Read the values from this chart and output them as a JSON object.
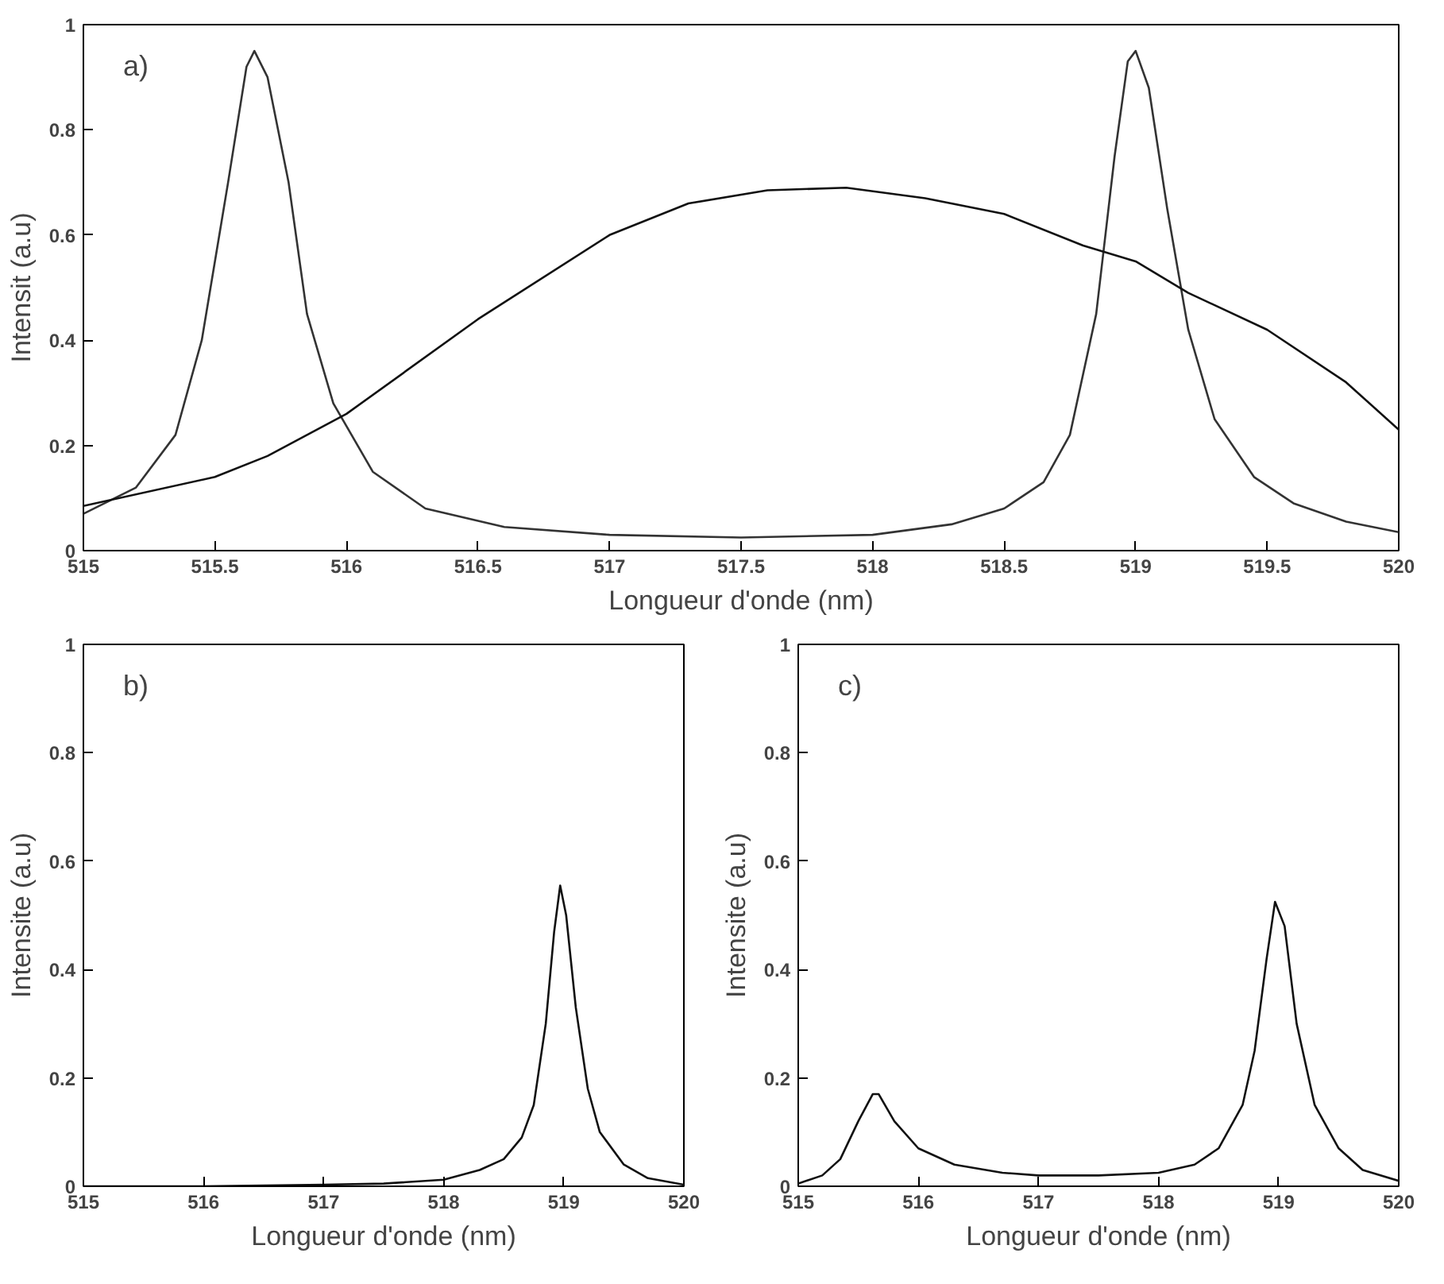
{
  "chart_data": [
    {
      "type": "line",
      "xlabel": "Longueur d'onde (nm)",
      "ylabel": "Intensit (a.u)",
      "annotations": [
        "a)"
      ],
      "xlim": [
        515,
        520
      ],
      "ylim": [
        0,
        1
      ],
      "xticks": [
        515,
        515.5,
        516,
        516.5,
        517,
        517.5,
        518,
        518.5,
        519,
        519.5,
        520
      ],
      "yticks": [
        0,
        0.2,
        0.4,
        0.6,
        0.8,
        1
      ],
      "series": [
        {
          "color": "#333333",
          "x": [
            515.0,
            515.2,
            515.35,
            515.45,
            515.55,
            515.62,
            515.65,
            515.7,
            515.78,
            515.85,
            515.95,
            516.1,
            516.3,
            516.6,
            517.0,
            517.5,
            518.0,
            518.3,
            518.5,
            518.65,
            518.75,
            518.85,
            518.92,
            518.97,
            519.0,
            519.05,
            519.12,
            519.2,
            519.3,
            519.45,
            519.6,
            519.8,
            520.0
          ],
          "values": [
            0.07,
            0.12,
            0.22,
            0.4,
            0.7,
            0.92,
            0.95,
            0.9,
            0.7,
            0.45,
            0.28,
            0.15,
            0.08,
            0.045,
            0.03,
            0.025,
            0.03,
            0.05,
            0.08,
            0.13,
            0.22,
            0.45,
            0.75,
            0.93,
            0.95,
            0.88,
            0.65,
            0.42,
            0.25,
            0.14,
            0.09,
            0.055,
            0.035
          ]
        },
        {
          "color": "#111111",
          "x": [
            515.0,
            515.5,
            515.7,
            516.0,
            516.5,
            517.0,
            517.3,
            517.6,
            517.9,
            518.2,
            518.5,
            518.8,
            519.0,
            519.2,
            519.5,
            519.8,
            520.0
          ],
          "values": [
            0.085,
            0.14,
            0.18,
            0.26,
            0.44,
            0.6,
            0.66,
            0.685,
            0.69,
            0.67,
            0.64,
            0.58,
            0.55,
            0.49,
            0.42,
            0.32,
            0.23
          ]
        }
      ]
    },
    {
      "type": "line",
      "xlabel": "Longueur d'onde (nm)",
      "ylabel": "Intensite (a.u)",
      "annotations": [
        "b)"
      ],
      "xlim": [
        515,
        520
      ],
      "ylim": [
        0,
        1
      ],
      "xticks": [
        515,
        516,
        517,
        518,
        519,
        520
      ],
      "yticks": [
        0,
        0.2,
        0.4,
        0.6,
        0.8,
        1
      ],
      "series": [
        {
          "color": "#111111",
          "x": [
            515,
            516,
            517,
            517.5,
            518,
            518.3,
            518.5,
            518.65,
            518.75,
            518.85,
            518.92,
            518.97,
            519.02,
            519.1,
            519.2,
            519.3,
            519.5,
            519.7,
            520
          ],
          "values": [
            0,
            0,
            0.003,
            0.005,
            0.012,
            0.03,
            0.05,
            0.09,
            0.15,
            0.3,
            0.47,
            0.555,
            0.5,
            0.33,
            0.18,
            0.1,
            0.04,
            0.015,
            0.003
          ]
        }
      ]
    },
    {
      "type": "line",
      "xlabel": "Longueur d'onde (nm)",
      "ylabel": "Intensite (a.u)",
      "annotations": [
        "c)"
      ],
      "xlim": [
        515,
        520
      ],
      "ylim": [
        0,
        1
      ],
      "xticks": [
        515,
        516,
        517,
        518,
        519,
        520
      ],
      "yticks": [
        0,
        0.2,
        0.4,
        0.6,
        0.8,
        1
      ],
      "series": [
        {
          "color": "#111111",
          "x": [
            515,
            515.2,
            515.35,
            515.5,
            515.62,
            515.67,
            515.8,
            516,
            516.3,
            516.7,
            517,
            517.5,
            518,
            518.3,
            518.5,
            518.7,
            518.8,
            518.9,
            518.97,
            519.05,
            519.15,
            519.3,
            519.5,
            519.7,
            520
          ],
          "values": [
            0.005,
            0.02,
            0.05,
            0.12,
            0.17,
            0.17,
            0.12,
            0.07,
            0.04,
            0.025,
            0.02,
            0.02,
            0.025,
            0.04,
            0.07,
            0.15,
            0.25,
            0.42,
            0.525,
            0.48,
            0.3,
            0.15,
            0.07,
            0.03,
            0.01
          ]
        }
      ]
    }
  ]
}
